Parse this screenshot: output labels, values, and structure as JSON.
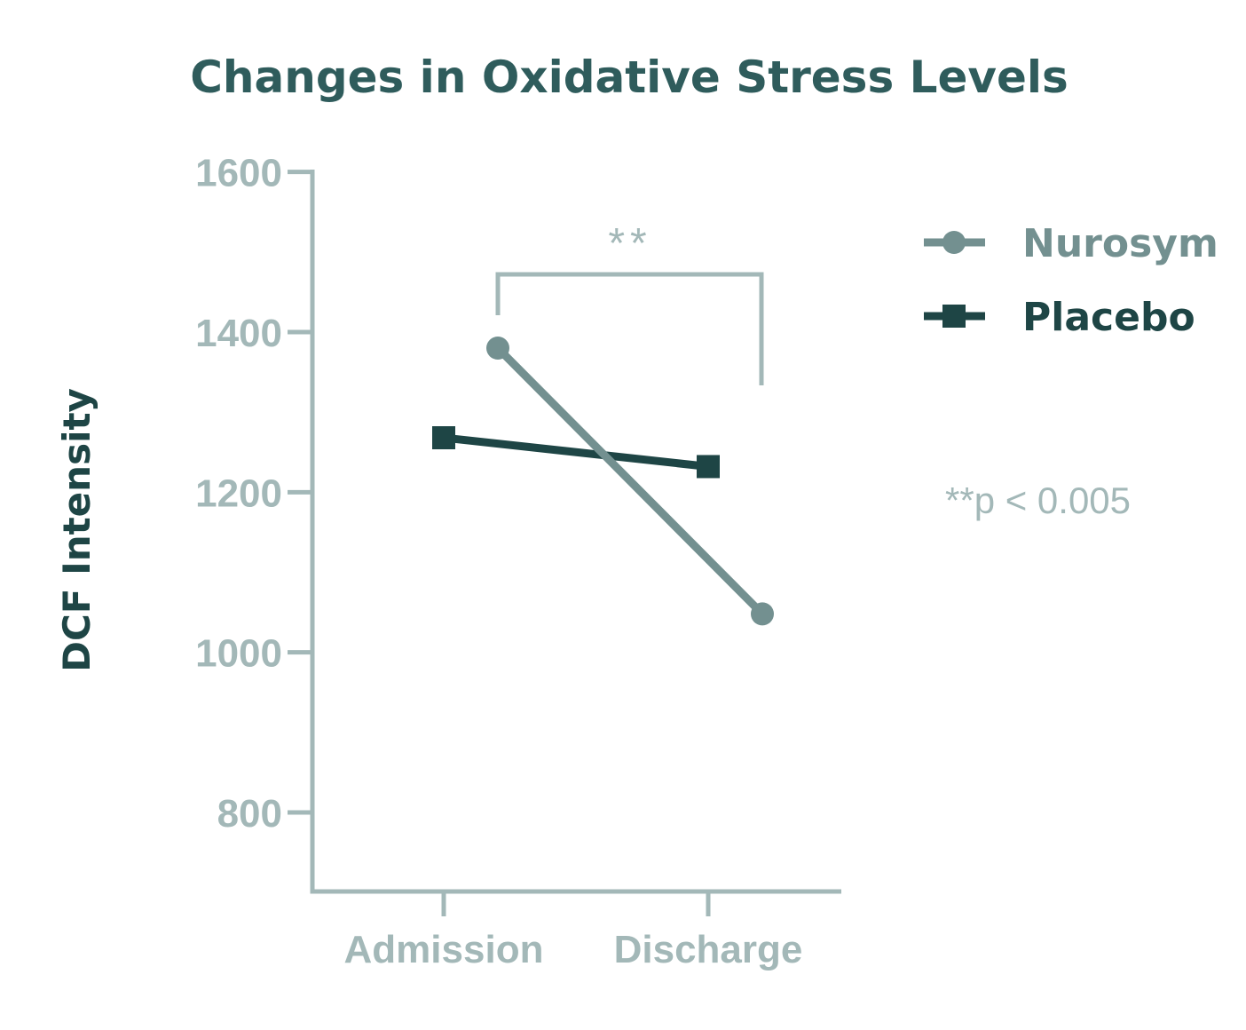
{
  "colors": {
    "title": "#2f5c5c",
    "axis": "#a3b8b8",
    "nurosym": "#739090",
    "placebo": "#1e4545",
    "ylabel": "#1e4545"
  },
  "chart_data": {
    "type": "line",
    "title": "Changes in Oxidative Stress Levels",
    "xlabel": "",
    "ylabel": "DCF Intensity",
    "categories": [
      "Admission",
      "Discharge"
    ],
    "ylim": [
      700,
      1600
    ],
    "yticks": [
      800,
      1000,
      1200,
      1400,
      1600
    ],
    "grid": false,
    "legend_position": "top-right",
    "series": [
      {
        "name": "Nurosym",
        "marker": "circle",
        "values": [
          1380,
          1048
        ]
      },
      {
        "name": "Placebo",
        "marker": "square",
        "values": [
          1268,
          1232
        ]
      }
    ],
    "annotations": {
      "significance_label": "**",
      "note": "**p < 0.005"
    }
  }
}
